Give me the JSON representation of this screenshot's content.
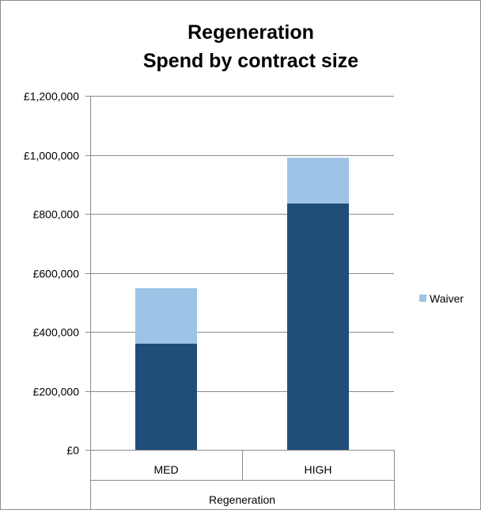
{
  "chart_data": {
    "type": "bar",
    "stacked": true,
    "title": [
      "Regeneration",
      "Spend by contract size"
    ],
    "categories": [
      "MED",
      "HIGH"
    ],
    "group_label": "Regeneration",
    "ylim": [
      0,
      1200000
    ],
    "y_ticks": [
      0,
      200000,
      400000,
      600000,
      800000,
      1000000,
      1200000
    ],
    "y_tick_labels": [
      "£0",
      "£200,000",
      "£400,000",
      "£600,000",
      "£800,000",
      "£1,000,000",
      "£1,200,000"
    ],
    "grid": true,
    "legend": "right",
    "series": [
      {
        "values": [
          360000,
          835000
        ],
        "color": "#1f4e79"
      },
      {
        "name": "Waiver",
        "values": [
          188000,
          155000
        ],
        "color": "#9dc3e6"
      }
    ]
  }
}
